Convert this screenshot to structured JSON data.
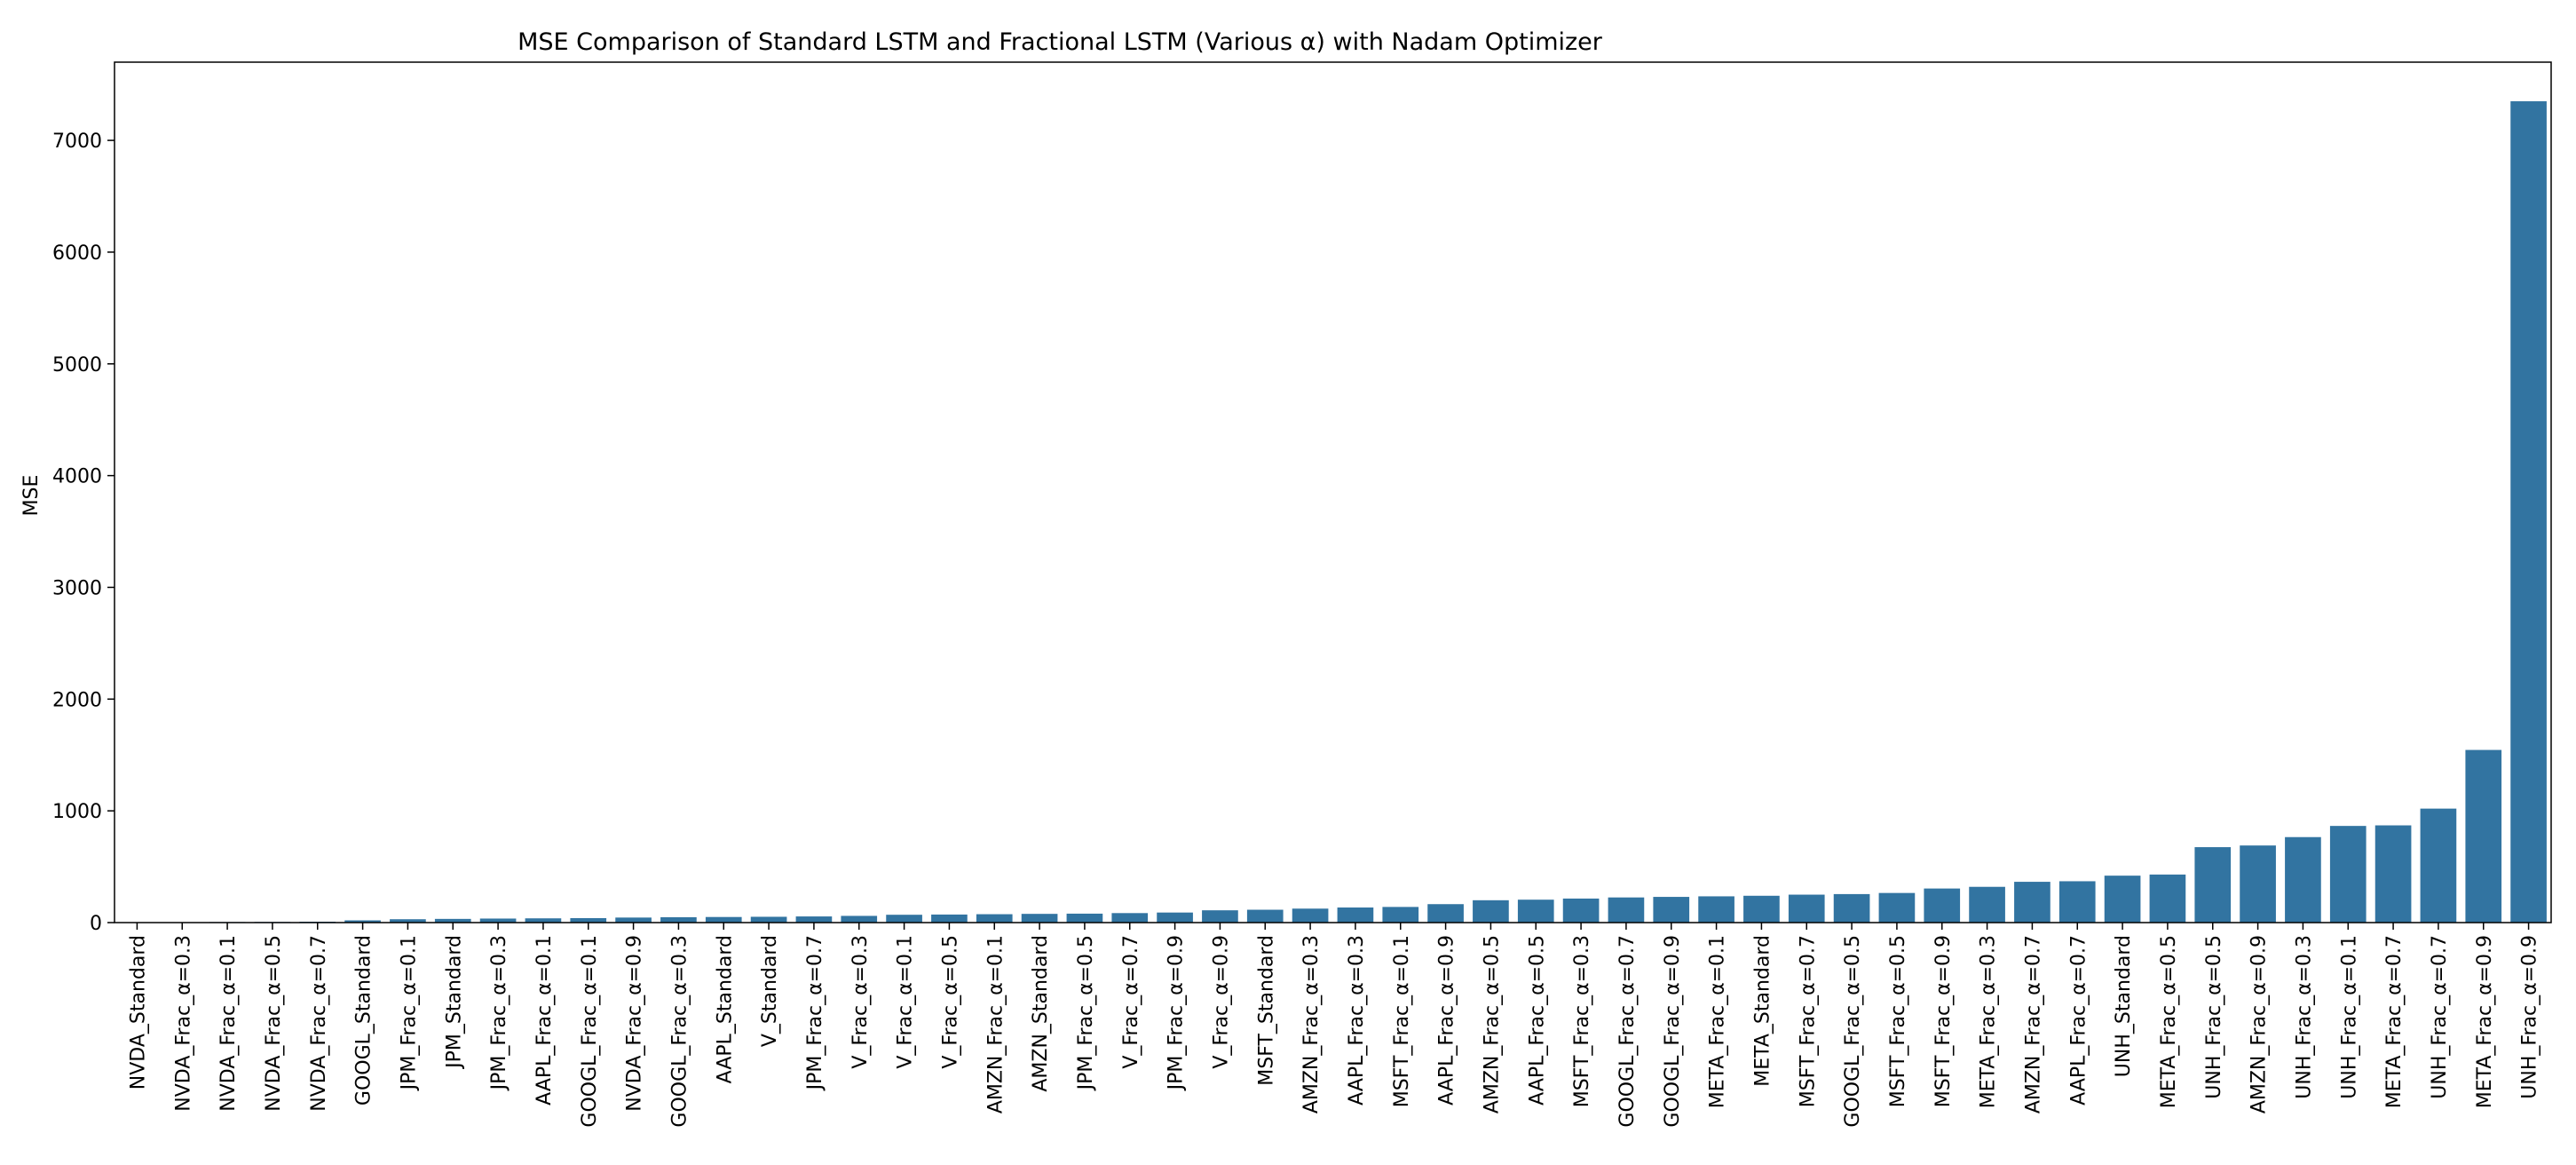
{
  "chart_data": {
    "type": "bar",
    "title": "MSE Comparison of Standard LSTM and Fractional LSTM (Various α) with Nadam Optimizer",
    "xlabel": "",
    "ylabel": "MSE",
    "ylim": [
      0,
      7700
    ],
    "yticks": [
      0,
      1000,
      2000,
      3000,
      4000,
      5000,
      6000,
      7000
    ],
    "grid": false,
    "bar_color": "#3274a1",
    "categories": [
      "NVDA_Standard",
      "NVDA_Frac_α=0.3",
      "NVDA_Frac_α=0.1",
      "NVDA_Frac_α=0.5",
      "NVDA_Frac_α=0.7",
      "GOOGL_Standard",
      "JPM_Frac_α=0.1",
      "JPM_Standard",
      "JPM_Frac_α=0.3",
      "AAPL_Frac_α=0.1",
      "GOOGL_Frac_α=0.1",
      "NVDA_Frac_α=0.9",
      "GOOGL_Frac_α=0.3",
      "AAPL_Standard",
      "V_Standard",
      "JPM_Frac_α=0.7",
      "V_Frac_α=0.3",
      "V_Frac_α=0.1",
      "V_Frac_α=0.5",
      "AMZN_Frac_α=0.1",
      "AMZN_Standard",
      "JPM_Frac_α=0.5",
      "V_Frac_α=0.7",
      "JPM_Frac_α=0.9",
      "V_Frac_α=0.9",
      "MSFT_Standard",
      "AMZN_Frac_α=0.3",
      "AAPL_Frac_α=0.3",
      "MSFT_Frac_α=0.1",
      "AAPL_Frac_α=0.9",
      "AMZN_Frac_α=0.5",
      "AAPL_Frac_α=0.5",
      "MSFT_Frac_α=0.3",
      "GOOGL_Frac_α=0.7",
      "GOOGL_Frac_α=0.9",
      "META_Frac_α=0.1",
      "META_Standard",
      "MSFT_Frac_α=0.7",
      "GOOGL_Frac_α=0.5",
      "MSFT_Frac_α=0.5",
      "MSFT_Frac_α=0.9",
      "META_Frac_α=0.3",
      "AMZN_Frac_α=0.7",
      "AAPL_Frac_α=0.7",
      "UNH_Standard",
      "META_Frac_α=0.5",
      "UNH_Frac_α=0.5",
      "AMZN_Frac_α=0.9",
      "UNH_Frac_α=0.3",
      "UNH_Frac_α=0.1",
      "META_Frac_α=0.7",
      "UNH_Frac_α=0.7",
      "META_Frac_α=0.9",
      "UNH_Frac_α=0.9"
    ],
    "values": [
      3,
      4,
      5,
      6,
      8,
      20,
      30,
      33,
      36,
      38,
      40,
      45,
      48,
      50,
      52,
      55,
      60,
      70,
      72,
      75,
      78,
      80,
      85,
      90,
      110,
      115,
      125,
      135,
      140,
      165,
      200,
      205,
      215,
      225,
      230,
      235,
      240,
      250,
      255,
      265,
      305,
      320,
      365,
      370,
      420,
      430,
      675,
      690,
      765,
      865,
      870,
      1020,
      1545,
      7350
    ]
  }
}
